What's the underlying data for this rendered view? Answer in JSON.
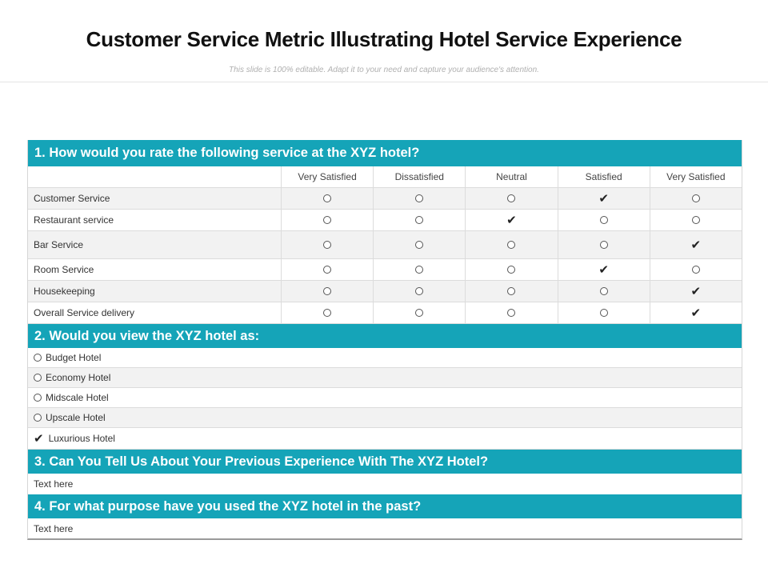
{
  "title": "Customer Service Metric Illustrating Hotel Service Experience",
  "subtitle": "This slide is 100% editable. Adapt it to your need and capture your audience's attention.",
  "q1": {
    "question": "1. How would you rate the following service at the XYZ hotel?",
    "columns": [
      "Very Satisfied",
      "Dissatisfied",
      "Neutral",
      "Satisfied",
      "Very Satisfied"
    ],
    "rows": [
      {
        "label": "Customer Service",
        "selected": 3
      },
      {
        "label": "Restaurant service",
        "selected": 2
      },
      {
        "label": "Bar Service",
        "selected": 4
      },
      {
        "label": "Room Service",
        "selected": 3
      },
      {
        "label": "Housekeeping",
        "selected": 4
      },
      {
        "label": "Overall  Service delivery",
        "selected": 4
      }
    ]
  },
  "q2": {
    "question": "2. Would you view the XYZ hotel as:",
    "options": [
      {
        "label": "Budget Hotel",
        "selected": false
      },
      {
        "label": "Economy Hotel",
        "selected": false
      },
      {
        "label": "Midscale Hotel",
        "selected": false
      },
      {
        "label": "Upscale Hotel",
        "selected": false
      },
      {
        "label": "Luxurious Hotel",
        "selected": true
      }
    ]
  },
  "q3": {
    "question": "3. Can You Tell Us About Your Previous Experience With The XYZ Hotel?",
    "answer": "Text here"
  },
  "q4": {
    "question": "4. For what purpose have you used the XYZ hotel in the past?",
    "answer": "Text here"
  },
  "colors": {
    "accent": "#15a4b8",
    "alt_row": "#f2f2f2"
  }
}
